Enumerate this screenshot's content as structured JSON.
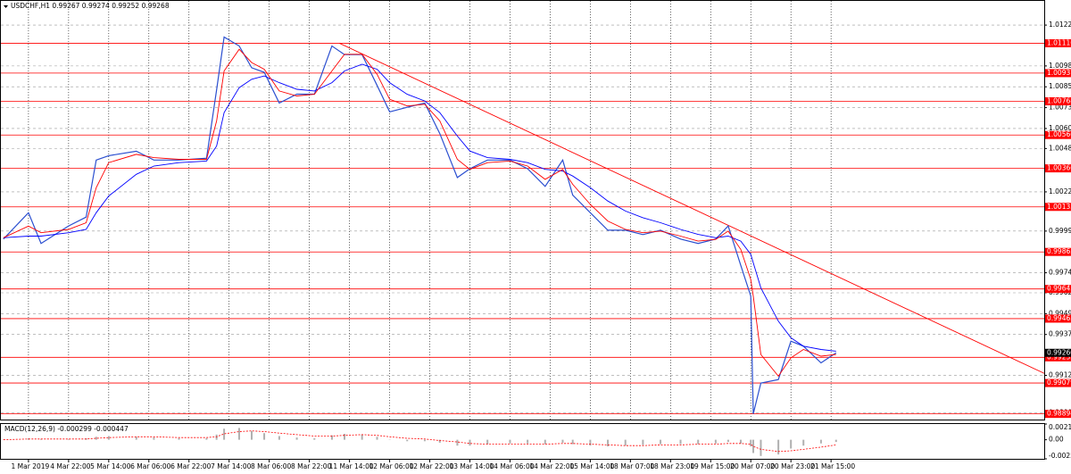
{
  "chart_data": [
    {
      "type": "line",
      "title": "USDCHF,H1 0.99267 0.99274 0.99252 0.99268",
      "x": [
        -10,
        0,
        5,
        16,
        23,
        27,
        32,
        43,
        50,
        60,
        71,
        75,
        78,
        84,
        89,
        94,
        100,
        107,
        114,
        121,
        126,
        133,
        139,
        144,
        151,
        158,
        164,
        171,
        176,
        183,
        192,
        199,
        206,
        213,
        217,
        224,
        231,
        238,
        245,
        252,
        260,
        267,
        274,
        279,
        284,
        288,
        289,
        292,
        299,
        304,
        309,
        316,
        322
      ],
      "xlim": [
        -11,
        405
      ],
      "xticks": [
        {
          "value": 0,
          "label": "1 Mar 2019"
        },
        {
          "value": 16,
          "label": "4 Mar 22:00"
        },
        {
          "value": 32,
          "label": "5 Mar 14:00"
        },
        {
          "value": 48,
          "label": "6 Mar 06:00"
        },
        {
          "value": 64,
          "label": "6 Mar 22:00"
        },
        {
          "value": 80,
          "label": "7 Mar 14:00"
        },
        {
          "value": 96,
          "label": "8 Mar 06:00"
        },
        {
          "value": 112,
          "label": "8 Mar 22:00"
        },
        {
          "value": 128,
          "label": "11 Mar 14:00"
        },
        {
          "value": 144,
          "label": "12 Mar 06:00"
        },
        {
          "value": 160,
          "label": "12 Mar 22:00"
        },
        {
          "value": 176,
          "label": "13 Mar 14:00"
        },
        {
          "value": 192,
          "label": "14 Mar 06:00"
        },
        {
          "value": 208,
          "label": "14 Mar 22:00"
        },
        {
          "value": 224,
          "label": "15 Mar 14:00"
        },
        {
          "value": 240,
          "label": "18 Mar 07:00"
        },
        {
          "value": 256,
          "label": "18 Mar 23:00"
        },
        {
          "value": 272,
          "label": "19 Mar 15:00"
        },
        {
          "value": 288,
          "label": "20 Mar 07:00"
        },
        {
          "value": 304,
          "label": "20 Mar 23:00"
        },
        {
          "value": 320,
          "label": "21 Mar 15:00"
        }
      ],
      "ylim": [
        0.9886,
        1.0137
      ],
      "yticks": [
        1.01225,
        {
          "value": 1.0098,
          "label": "1.00980"
        },
        1.00855,
        {
          "value": 1.0073,
          "label": "1.00730"
        },
        1.00605,
        1.00485,
        1.00225,
        {
          "value": 0.9999,
          "label": "0.99990"
        },
        {
          "value": 0.9974,
          "label": "0.99740"
        },
        {
          "value": 0.9962,
          "label": "0.99620"
        },
        0.99495,
        {
          "value": 0.9937,
          "label": "0.99370"
        },
        0.99125,
        {
          "value": 0.989,
          "label": "0.98900"
        }
      ],
      "grid": true,
      "series": [
        {
          "color": "#2b4fd0",
          "values": [
            0.99942,
            1.001,
            0.99916,
            1.00021,
            1.00074,
            1.00416,
            1.00442,
            1.00469,
            1.00416,
            1.00416,
            1.00427,
            1.00837,
            1.01153,
            1.011,
            1.00969,
            1.00942,
            1.00758,
            1.00811,
            1.00811,
            1.011,
            1.01048,
            1.01048,
            1.00863,
            1.00705,
            1.00732,
            1.00758,
            1.00574,
            1.00311,
            1.00364,
            1.00416,
            1.00416,
            1.00364,
            1.00258,
            1.00416,
            1.00206,
            1.001,
            0.99995,
            0.99995,
            0.99969,
            0.99995,
            0.99942,
            0.99916,
            0.99942,
            1.00021,
            0.99784,
            0.996,
            0.98894,
            0.99079,
            0.991,
            0.9933,
            0.993,
            0.992,
            0.9926
          ]
        },
        {
          "color": "#0000ff",
          "values": [
            0.9995,
            0.9996,
            0.9996,
            0.9998,
            1.0,
            1.001,
            1.002,
            1.0033,
            1.0038,
            1.004,
            1.0041,
            1.005,
            1.007,
            1.0085,
            1.009,
            1.0092,
            1.0088,
            1.0084,
            1.0083,
            1.0088,
            1.0095,
            1.0099,
            1.0096,
            1.0088,
            1.0081,
            1.0077,
            1.007,
            1.0056,
            1.0047,
            1.0043,
            1.0042,
            1.004,
            1.0036,
            1.0035,
            1.0032,
            1.0025,
            1.0017,
            1.0011,
            1.0007,
            1.0004,
            1.0,
            0.9997,
            0.9995,
            0.9996,
            0.9993,
            0.9985,
            0.998,
            0.9965,
            0.9945,
            0.9935,
            0.993,
            0.9928,
            0.9927
          ]
        },
        {
          "color": "#ff0000",
          "values": [
            0.9995,
            1.0002,
            0.9998,
            1.0,
            1.0004,
            1.0025,
            1.004,
            1.0045,
            1.0043,
            1.0042,
            1.0042,
            1.0065,
            1.0095,
            1.0108,
            1.01,
            1.0096,
            1.0083,
            1.008,
            1.0081,
            1.0095,
            1.0105,
            1.0105,
            1.0093,
            1.0078,
            1.0074,
            1.0075,
            1.0065,
            1.0042,
            1.0036,
            1.004,
            1.0041,
            1.0038,
            1.003,
            1.0036,
            1.0027,
            1.0015,
            1.0005,
            1.0,
            0.9998,
            0.9999,
            0.9996,
            0.9993,
            0.9994,
            0.9999,
            0.9988,
            0.997,
            0.996,
            0.9925,
            0.9912,
            0.9923,
            0.9928,
            0.9924,
            0.9925
          ]
        }
      ],
      "levels": [
        1.01116,
        1.00937,
        1.00768,
        1.00566,
        1.00366,
        1.00135,
        0.99865,
        0.99643,
        0.99465,
        0.99233,
        0.99079,
        0.98894
      ],
      "level_color": "#ff0000",
      "current_price": {
        "value": 0.9926,
        "label": "0.99260"
      },
      "trendline": {
        "color": "#ff0000",
        "x": [
          124,
          405
        ],
        "values": [
          1.01116,
          0.99137
        ]
      }
    },
    {
      "type": "macd",
      "title": "MACD(12,26,9) -0.000299 -0.000447",
      "values": [
        0,
        0.0002,
        0.0001,
        0.0001,
        0.0002,
        0.0004,
        0.0005,
        0.0004,
        0.0003,
        0.0002,
        0.0002,
        0.0007,
        0.0015,
        0.0016,
        0.0012,
        0.0009,
        0.0005,
        0.0003,
        0.0002,
        0.0006,
        0.0008,
        0.0007,
        0.0004,
        0,
        -0.0002,
        -0.0002,
        -0.0004,
        -0.0008,
        -0.0008,
        -0.0006,
        -0.0005,
        -0.0005,
        -0.0006,
        -0.0004,
        -0.0006,
        -0.0008,
        -0.0009,
        -0.0008,
        -0.0007,
        -0.0006,
        -0.0006,
        -0.0006,
        -0.0005,
        -0.0003,
        -0.0005,
        -0.0009,
        -0.0018,
        -0.0022,
        -0.002,
        -0.0012,
        -0.0008,
        -0.0005,
        -0.0003
      ],
      "color": "#b0b0b0",
      "signal": [
        0,
        0.0001,
        0.0001,
        0.0001,
        0.0001,
        0.0002,
        0.0003,
        0.0004,
        0.0004,
        0.0003,
        0.0003,
        0.0004,
        0.0008,
        0.0011,
        0.0012,
        0.0011,
        0.0009,
        0.0007,
        0.0005,
        0.0005,
        0.0006,
        0.0007,
        0.0006,
        0.0004,
        0.0002,
        0.0001,
        -0.0001,
        -0.0003,
        -0.0005,
        -0.0006,
        -0.0006,
        -0.0006,
        -0.0006,
        -0.0005,
        -0.0005,
        -0.0006,
        -0.0007,
        -0.0008,
        -0.0008,
        -0.0007,
        -0.0007,
        -0.0006,
        -0.0006,
        -0.0005,
        -0.0005,
        -0.0006,
        -0.0009,
        -0.0013,
        -0.0016,
        -0.0015,
        -0.0013,
        -0.001,
        -0.0007
      ],
      "signal_color": "#ff0000",
      "ylim": [
        -0.00259,
        0.002136
      ],
      "yticks": [
        0.002136,
        {
          "value": 0,
          "label": "0.00"
        },
        -0.00259
      ]
    }
  ]
}
